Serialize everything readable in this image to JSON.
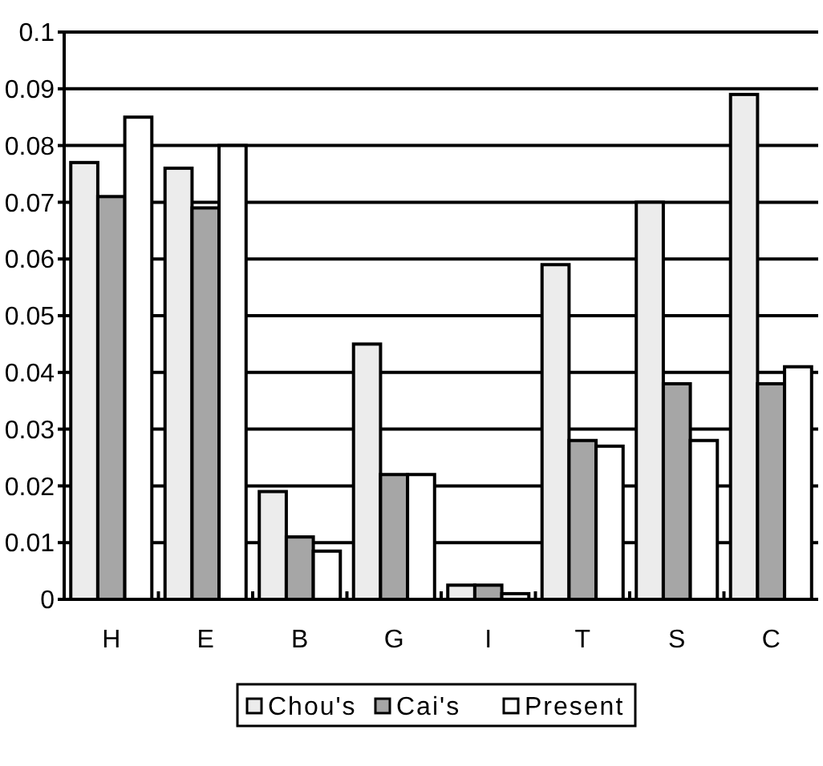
{
  "chart_data": {
    "type": "bar",
    "categories": [
      "H",
      "E",
      "B",
      "G",
      "I",
      "T",
      "S",
      "C"
    ],
    "series": [
      {
        "name": "Chou's",
        "color": "#ececec",
        "values": [
          0.077,
          0.076,
          0.019,
          0.045,
          0.0025,
          0.059,
          0.07,
          0.089
        ]
      },
      {
        "name": "Cai's",
        "color": "#a6a6a6",
        "values": [
          0.071,
          0.069,
          0.011,
          0.022,
          0.0025,
          0.028,
          0.038,
          0.038
        ]
      },
      {
        "name": "Present",
        "color": "#ffffff",
        "values": [
          0.085,
          0.08,
          0.0085,
          0.022,
          0.001,
          0.027,
          0.028,
          0.041
        ]
      }
    ],
    "ylim": [
      0,
      0.1
    ],
    "yticks": [
      0,
      0.01,
      0.02,
      0.03,
      0.04,
      0.05,
      0.06,
      0.07,
      0.08,
      0.09,
      0.1
    ],
    "grid": "y",
    "legend": "bottom"
  }
}
